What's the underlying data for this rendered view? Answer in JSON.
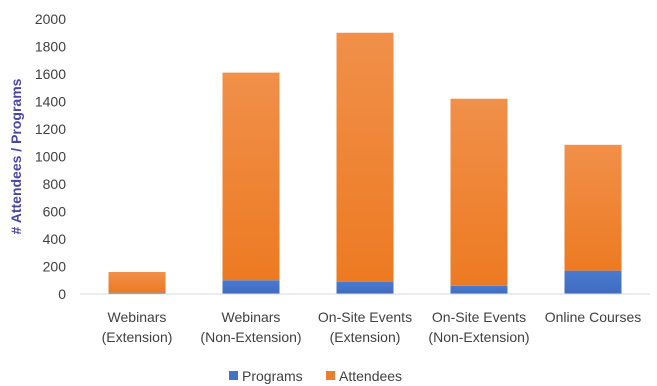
{
  "chart_data": {
    "type": "bar",
    "stacked": true,
    "categories": [
      [
        "Webinars",
        "(Extension)"
      ],
      [
        "Webinars",
        "(Non-Extension)"
      ],
      [
        "On-Site Events",
        "(Extension)"
      ],
      [
        "On-Site Events",
        "(Non-Extension)"
      ],
      [
        "Online Courses"
      ]
    ],
    "series": [
      {
        "name": "Programs",
        "color": "#4472c4",
        "values": [
          10,
          100,
          90,
          60,
          170
        ]
      },
      {
        "name": "Attendees",
        "color": "#ed7d31",
        "values": [
          150,
          1510,
          1810,
          1360,
          915
        ]
      }
    ],
    "ylabel": "# Attendees / Programs",
    "ylim": [
      0,
      2000
    ],
    "yticks": [
      0,
      200,
      400,
      600,
      800,
      1000,
      1200,
      1400,
      1600,
      1800,
      2000
    ],
    "grid": false,
    "legend": "bottom"
  }
}
